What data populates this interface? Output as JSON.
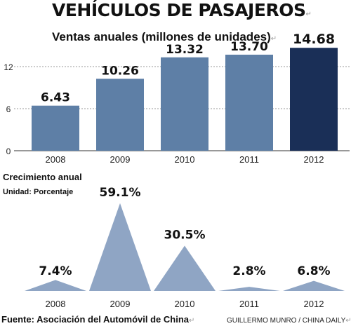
{
  "title": "VEHÍCULOS DE PASAJEROS",
  "subtitle": "Ventas anuales (millones de unidades)",
  "growth_title": "Crecimiento anual",
  "growth_unit": "Unidad: Porcentaje",
  "source": "Fuente: Asociación del Automóvil de China",
  "credit": "GUILLERMO MUNRO / CHINA DAILY",
  "colors": {
    "bar": "#5e7fa6",
    "bar_highlight": "#1a2f57",
    "triangle": "#8fa5c4",
    "grid": "#999999"
  },
  "chart_data": [
    {
      "type": "bar",
      "title": "Ventas anuales (millones de unidades)",
      "categories": [
        "2008",
        "2009",
        "2010",
        "2011",
        "2012"
      ],
      "values": [
        6.43,
        10.26,
        13.32,
        13.7,
        14.68
      ],
      "value_labels": [
        "6.43",
        "10.26",
        "13.32",
        "13.70",
        "14.68"
      ],
      "y_ticks": [
        "0",
        "6",
        "12"
      ],
      "ylim": [
        0,
        15.5
      ],
      "highlight_index": 4,
      "grid": true
    },
    {
      "type": "area",
      "title": "Crecimiento anual",
      "unit": "Unidad: Porcentaje",
      "categories": [
        "2008",
        "2009",
        "2010",
        "2011",
        "2012"
      ],
      "values": [
        7.4,
        59.1,
        30.5,
        2.8,
        6.8
      ],
      "value_labels": [
        "7.4%",
        "59.1%",
        "30.5%",
        "2.8%",
        "6.8%"
      ],
      "grid": false
    }
  ]
}
